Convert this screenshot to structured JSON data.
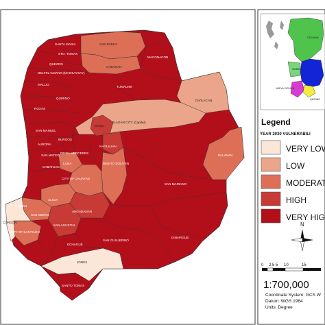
{
  "legend": {
    "title": "Legend",
    "subtitle": "YEAR 2030  VULNERABILI",
    "classes": [
      {
        "label": "VERY LOW",
        "color": "#fbe6d8"
      },
      {
        "label": "LOW",
        "color": "#eaa58a"
      },
      {
        "label": "MODERATE",
        "color": "#dd6f57"
      },
      {
        "label": "HIGH",
        "color": "#c73a35"
      },
      {
        "label": "VERY HIGH",
        "color": "#b20f1b"
      }
    ]
  },
  "north": {
    "label": "N"
  },
  "scale": {
    "ticks": [
      "0",
      "2.5 5",
      "10",
      "15"
    ],
    "ratio": "1:700,000",
    "coordinate_system": "Coordinate System: GCS W",
    "datum": "Datum: WGS 1984",
    "units": "Units: Degree"
  },
  "inset": {
    "labels": [
      "CAGAYAN",
      "ISABELA",
      "NUEVA VIZCAYA",
      "QUIRINO"
    ]
  },
  "municipalities": [
    {
      "name": "SANTA MARIA",
      "class": "VERY HIGH"
    },
    {
      "name": "SAN PABLO",
      "class": "MODERATE"
    },
    {
      "name": "STO. TOMAS",
      "class": "VERY HIGH"
    },
    {
      "name": "CABAGAN",
      "class": "MODERATE"
    },
    {
      "name": "MACONACON",
      "class": "VERY HIGH"
    },
    {
      "name": "QUEZON",
      "class": "VERY HIGH"
    },
    {
      "name": "DELFIN ALBANO (MAGSAYSAY)",
      "class": "VERY HIGH"
    },
    {
      "name": "TUMAUINI",
      "class": "VERY HIGH"
    },
    {
      "name": "MALLIG",
      "class": "VERY HIGH"
    },
    {
      "name": "QUIRINO",
      "class": "VERY HIGH"
    },
    {
      "name": "ROXAS",
      "class": "VERY HIGH"
    },
    {
      "name": "DIVILACAN",
      "class": "LOW"
    },
    {
      "name": "ILAGAN CITY (Capital)",
      "class": "LOW"
    },
    {
      "name": "SAN MANUEL",
      "class": "VERY HIGH"
    },
    {
      "name": "BURGOS",
      "class": "VERY HIGH"
    },
    {
      "name": "GAMU",
      "class": "HIGH"
    },
    {
      "name": "AURORA",
      "class": "VERY HIGH"
    },
    {
      "name": "REINA MERCEDES",
      "class": "VERY HIGH"
    },
    {
      "name": "SAN MATEO",
      "class": "VERY HIGH"
    },
    {
      "name": "LUNA",
      "class": "MODERATE"
    },
    {
      "name": "CABATUAN",
      "class": "VERY HIGH"
    },
    {
      "name": "NAGUILIAN",
      "class": "HIGH"
    },
    {
      "name": "BENITO SOLIVEN",
      "class": "MODERATE"
    },
    {
      "name": "PALANAN",
      "class": "MODERATE"
    },
    {
      "name": "CITY OF CAUAYAN",
      "class": "MODERATE"
    },
    {
      "name": "SAN MARIANO",
      "class": "VERY HIGH"
    },
    {
      "name": "ALICIA",
      "class": "MODERATE"
    },
    {
      "name": "ANGADANAN",
      "class": "HIGH"
    },
    {
      "name": "RAMON",
      "class": "VERY HIGH"
    },
    {
      "name": "SAN ISIDRO",
      "class": "MODERATE"
    },
    {
      "name": "SAN AGUSTIN",
      "class": "HIGH"
    },
    {
      "name": "CORDON",
      "class": "VERY LOW"
    },
    {
      "name": "CITY OF SANTIAGO",
      "class": "MODERATE"
    },
    {
      "name": "SAN GUILLERMO",
      "class": "VERY HIGH"
    },
    {
      "name": "ECHAGUE",
      "class": "VERY HIGH"
    },
    {
      "name": "DINAPIGUE",
      "class": "VERY HIGH"
    },
    {
      "name": "JONES",
      "class": "VERY LOW"
    },
    {
      "name": "SANTO TOMAS",
      "class": "VERY HIGH"
    }
  ]
}
